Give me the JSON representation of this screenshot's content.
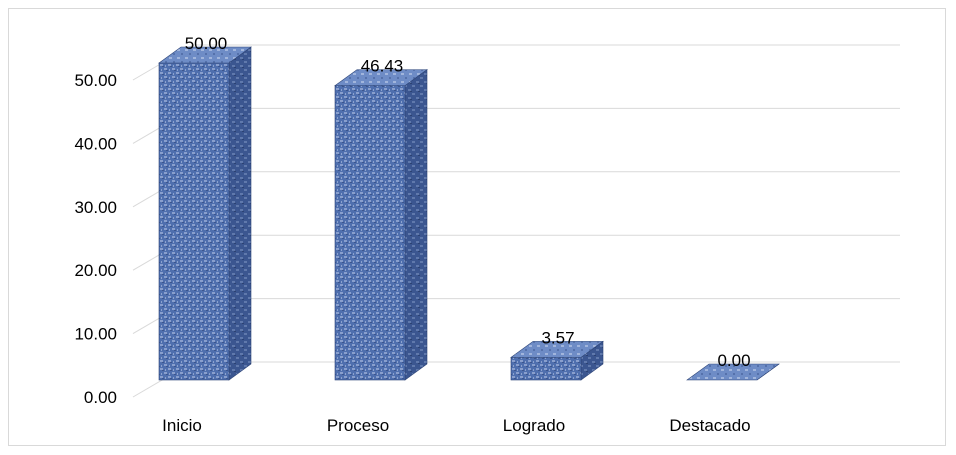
{
  "chart_data": {
    "type": "bar",
    "title": "",
    "xlabel": "",
    "ylabel": "",
    "categories": [
      "Inicio",
      "Proceso",
      "Logrado",
      "Destacado"
    ],
    "values": [
      50.0,
      46.43,
      3.57,
      0.0
    ],
    "data_labels": [
      "50.00",
      "46.43",
      "3.57",
      "0.00"
    ],
    "ylim": [
      0,
      50
    ],
    "y_ticks": [
      0,
      10,
      20,
      30,
      40,
      50
    ],
    "y_tick_labels": [
      "0.00",
      "10.00",
      "20.00",
      "30.00",
      "40.00",
      "50.00"
    ],
    "grid": true,
    "legend": "none",
    "three_d": true,
    "colors": {
      "bar_front": "#4f6fae",
      "bar_side": "#3b5690",
      "bar_top": "#6e8cc6",
      "texture": "#b7c7e6",
      "grid": "#d9d9d9",
      "axis_text": "#000000"
    }
  }
}
